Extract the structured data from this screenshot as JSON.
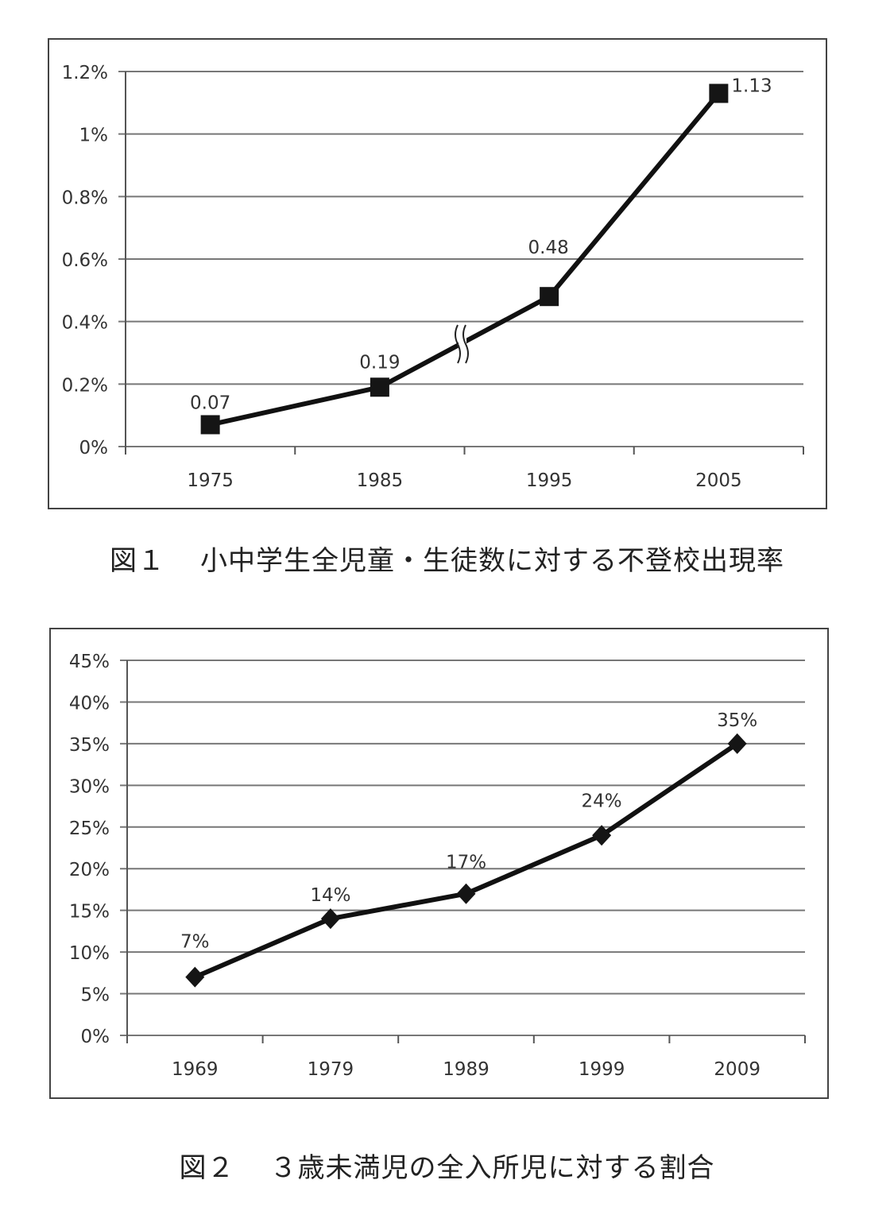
{
  "figure1": {
    "caption_number": "図１",
    "caption_text": "小中学生全児童・生徒数に対する不登校出現率"
  },
  "figure2": {
    "caption_number": "図２",
    "caption_text": "３歳未満児の全入所児に対する割合"
  },
  "chart_data": [
    {
      "type": "line",
      "title": "図１ 小中学生全児童・生徒数に対する不登校出現率",
      "xlabel": "",
      "ylabel": "",
      "categories": [
        "1975",
        "1985",
        "1995",
        "2005"
      ],
      "series": [
        {
          "name": "不登校出現率",
          "values": [
            0.07,
            0.19,
            0.48,
            1.13
          ],
          "marker": "square"
        }
      ],
      "data_labels": [
        "0.07",
        "0.19",
        "0.48",
        "1.13"
      ],
      "y_ticks": [
        "0%",
        "0.2%",
        "0.4%",
        "0.6%",
        "0.8%",
        "1%",
        "1.2%"
      ],
      "ylim": [
        0,
        1.2
      ],
      "grid": true,
      "annotations": [
        "axis break symbol between 1985 and 1995"
      ],
      "legend": "none"
    },
    {
      "type": "line",
      "title": "図２ ３歳未満児の全入所児に対する割合",
      "xlabel": "",
      "ylabel": "",
      "categories": [
        "1969",
        "1979",
        "1989",
        "1999",
        "2009"
      ],
      "series": [
        {
          "name": "３歳未満児の割合",
          "values": [
            7,
            14,
            17,
            24,
            35
          ],
          "marker": "diamond"
        }
      ],
      "data_labels": [
        "7%",
        "14%",
        "17%",
        "24%",
        "35%"
      ],
      "y_ticks": [
        "0%",
        "5%",
        "10%",
        "15%",
        "20%",
        "25%",
        "30%",
        "35%",
        "40%",
        "45%"
      ],
      "ylim": [
        0,
        45
      ],
      "grid": true,
      "legend": "none"
    }
  ]
}
